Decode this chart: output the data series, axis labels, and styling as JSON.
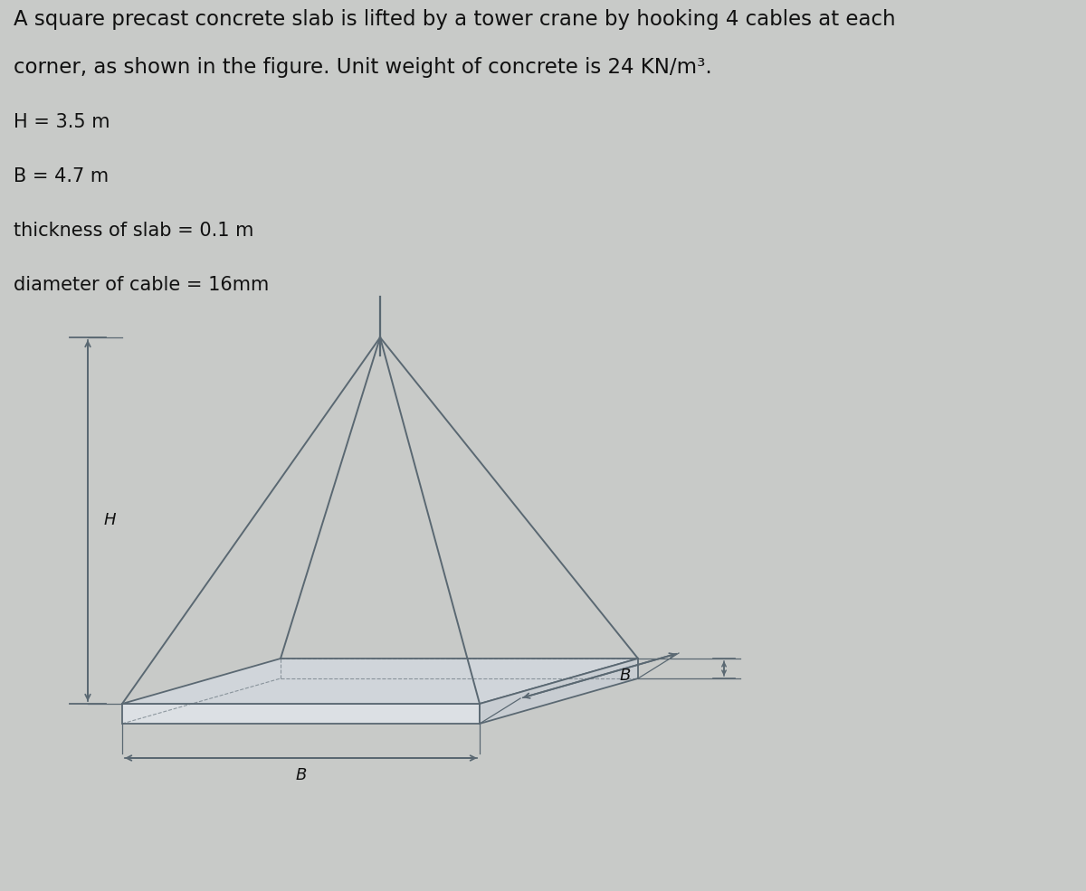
{
  "title_line1": "A square precast concrete slab is lifted by a tower crane by hooking 4 cables at each",
  "title_line2": "corner, as shown in the figure. Unit weight of concrete is 24 KN/m³.",
  "param_H": "H = 3.5 m",
  "param_B": "B = 4.7 m",
  "param_t": "thickness of slab = 0.1 m",
  "param_d": "diameter of cable = 16mm",
  "bg_color": "#c8cac8",
  "line_color": "#5a6872",
  "text_color": "#111111",
  "title_fontsize": 16.5,
  "param_fontsize": 15,
  "label_fontsize": 13
}
